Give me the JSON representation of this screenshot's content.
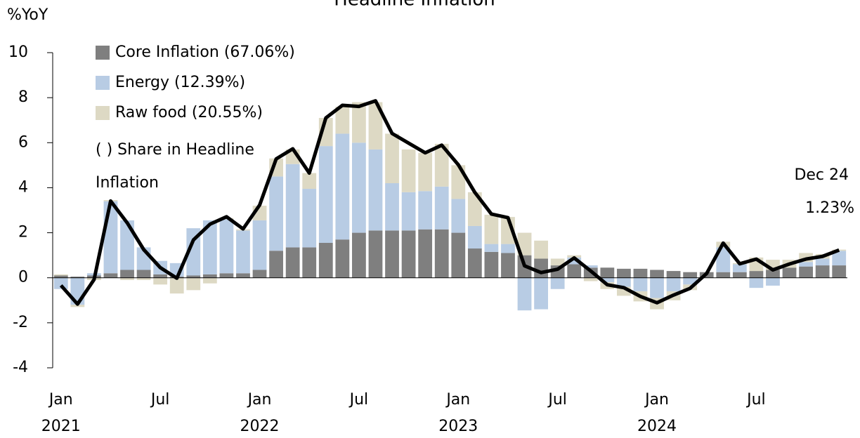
{
  "chart_data": {
    "type": "bar",
    "stacked": true,
    "title": "Headline Inflation",
    "y_label": "%YoY",
    "legend_note": "( ) Share in Headline Inflation",
    "annotations": [
      "Dec 24",
      "1.23%"
    ],
    "categories": [
      "Jan",
      null,
      null,
      null,
      null,
      null,
      "Jul",
      null,
      null,
      null,
      null,
      null,
      "Jan",
      null,
      null,
      null,
      null,
      null,
      "Jul",
      null,
      null,
      null,
      null,
      null,
      "Jan",
      null,
      null,
      null,
      null,
      null,
      "Jul",
      null,
      null,
      null,
      null,
      null,
      "Jan",
      null,
      null,
      null,
      null,
      null,
      "Jul",
      null,
      null,
      null,
      null,
      null
    ],
    "category_years": [
      "2021",
      null,
      null,
      null,
      null,
      null,
      null,
      null,
      null,
      null,
      null,
      null,
      "2022",
      null,
      null,
      null,
      null,
      null,
      null,
      null,
      null,
      null,
      null,
      null,
      "2023",
      null,
      null,
      null,
      null,
      null,
      null,
      null,
      null,
      null,
      null,
      null,
      "2024",
      null,
      null,
      null,
      null,
      null,
      null,
      null,
      null,
      null,
      null,
      null
    ],
    "ylim": [
      -4,
      10
    ],
    "yticks": [
      -4,
      -2,
      0,
      2,
      4,
      6,
      8,
      10
    ],
    "series": [
      {
        "name": "Core Inflation (67.06%)",
        "color": "#7f7f7f",
        "values": [
          0.1,
          0.05,
          0.1,
          0.2,
          0.35,
          0.35,
          0.15,
          0.05,
          0.1,
          0.15,
          0.2,
          0.2,
          0.35,
          1.2,
          1.35,
          1.35,
          1.55,
          1.7,
          2.0,
          2.1,
          2.1,
          2.1,
          2.15,
          2.15,
          2.0,
          1.3,
          1.15,
          1.1,
          1.0,
          0.85,
          0.55,
          0.6,
          0.45,
          0.45,
          0.4,
          0.4,
          0.35,
          0.3,
          0.25,
          0.25,
          0.25,
          0.25,
          0.3,
          0.35,
          0.45,
          0.5,
          0.55,
          0.55
        ]
      },
      {
        "name": "Energy (12.39%)",
        "color": "#b8cce4",
        "values": [
          -0.5,
          -1.2,
          0.1,
          3.2,
          2.2,
          1.0,
          0.6,
          0.6,
          2.1,
          2.4,
          2.4,
          1.9,
          2.2,
          3.3,
          3.7,
          2.6,
          4.3,
          4.7,
          4.0,
          3.6,
          2.1,
          1.7,
          1.7,
          1.9,
          1.5,
          1.0,
          0.35,
          0.4,
          -1.45,
          -1.4,
          -0.5,
          0.3,
          0.1,
          -0.2,
          -0.4,
          -0.6,
          -0.9,
          -0.6,
          -0.3,
          0.0,
          1.1,
          0.35,
          -0.45,
          -0.35,
          0.0,
          0.2,
          0.3,
          0.65
        ]
      },
      {
        "name": "Raw food (20.55%)",
        "color": "#ddd9c4",
        "values": [
          0.05,
          -0.1,
          -0.1,
          0.05,
          -0.1,
          -0.1,
          -0.3,
          -0.7,
          -0.55,
          -0.25,
          0.05,
          0.05,
          0.65,
          0.8,
          0.65,
          0.7,
          1.25,
          1.2,
          1.8,
          2.1,
          2.2,
          1.9,
          1.7,
          1.9,
          1.5,
          1.5,
          1.3,
          1.2,
          1.0,
          0.8,
          0.3,
          0.1,
          -0.15,
          -0.3,
          -0.4,
          -0.45,
          -0.5,
          -0.4,
          -0.25,
          0.0,
          0.25,
          0.05,
          0.6,
          0.45,
          0.35,
          0.4,
          0.2,
          0.05
        ]
      },
      {
        "type": "line",
        "color": "#000000",
        "values": [
          -0.34,
          -1.17,
          -0.08,
          3.41,
          2.44,
          1.25,
          0.45,
          -0.02,
          1.68,
          2.38,
          2.71,
          2.17,
          3.23,
          5.28,
          5.73,
          4.65,
          7.1,
          7.66,
          7.61,
          7.86,
          6.41,
          5.98,
          5.55,
          5.89,
          5.02,
          3.79,
          2.83,
          2.67,
          0.53,
          0.23,
          0.38,
          0.88,
          0.3,
          -0.31,
          -0.44,
          -0.83,
          -1.11,
          -0.77,
          -0.47,
          0.19,
          1.54,
          0.62,
          0.83,
          0.35,
          0.61,
          0.83,
          0.95,
          1.23
        ]
      }
    ]
  }
}
